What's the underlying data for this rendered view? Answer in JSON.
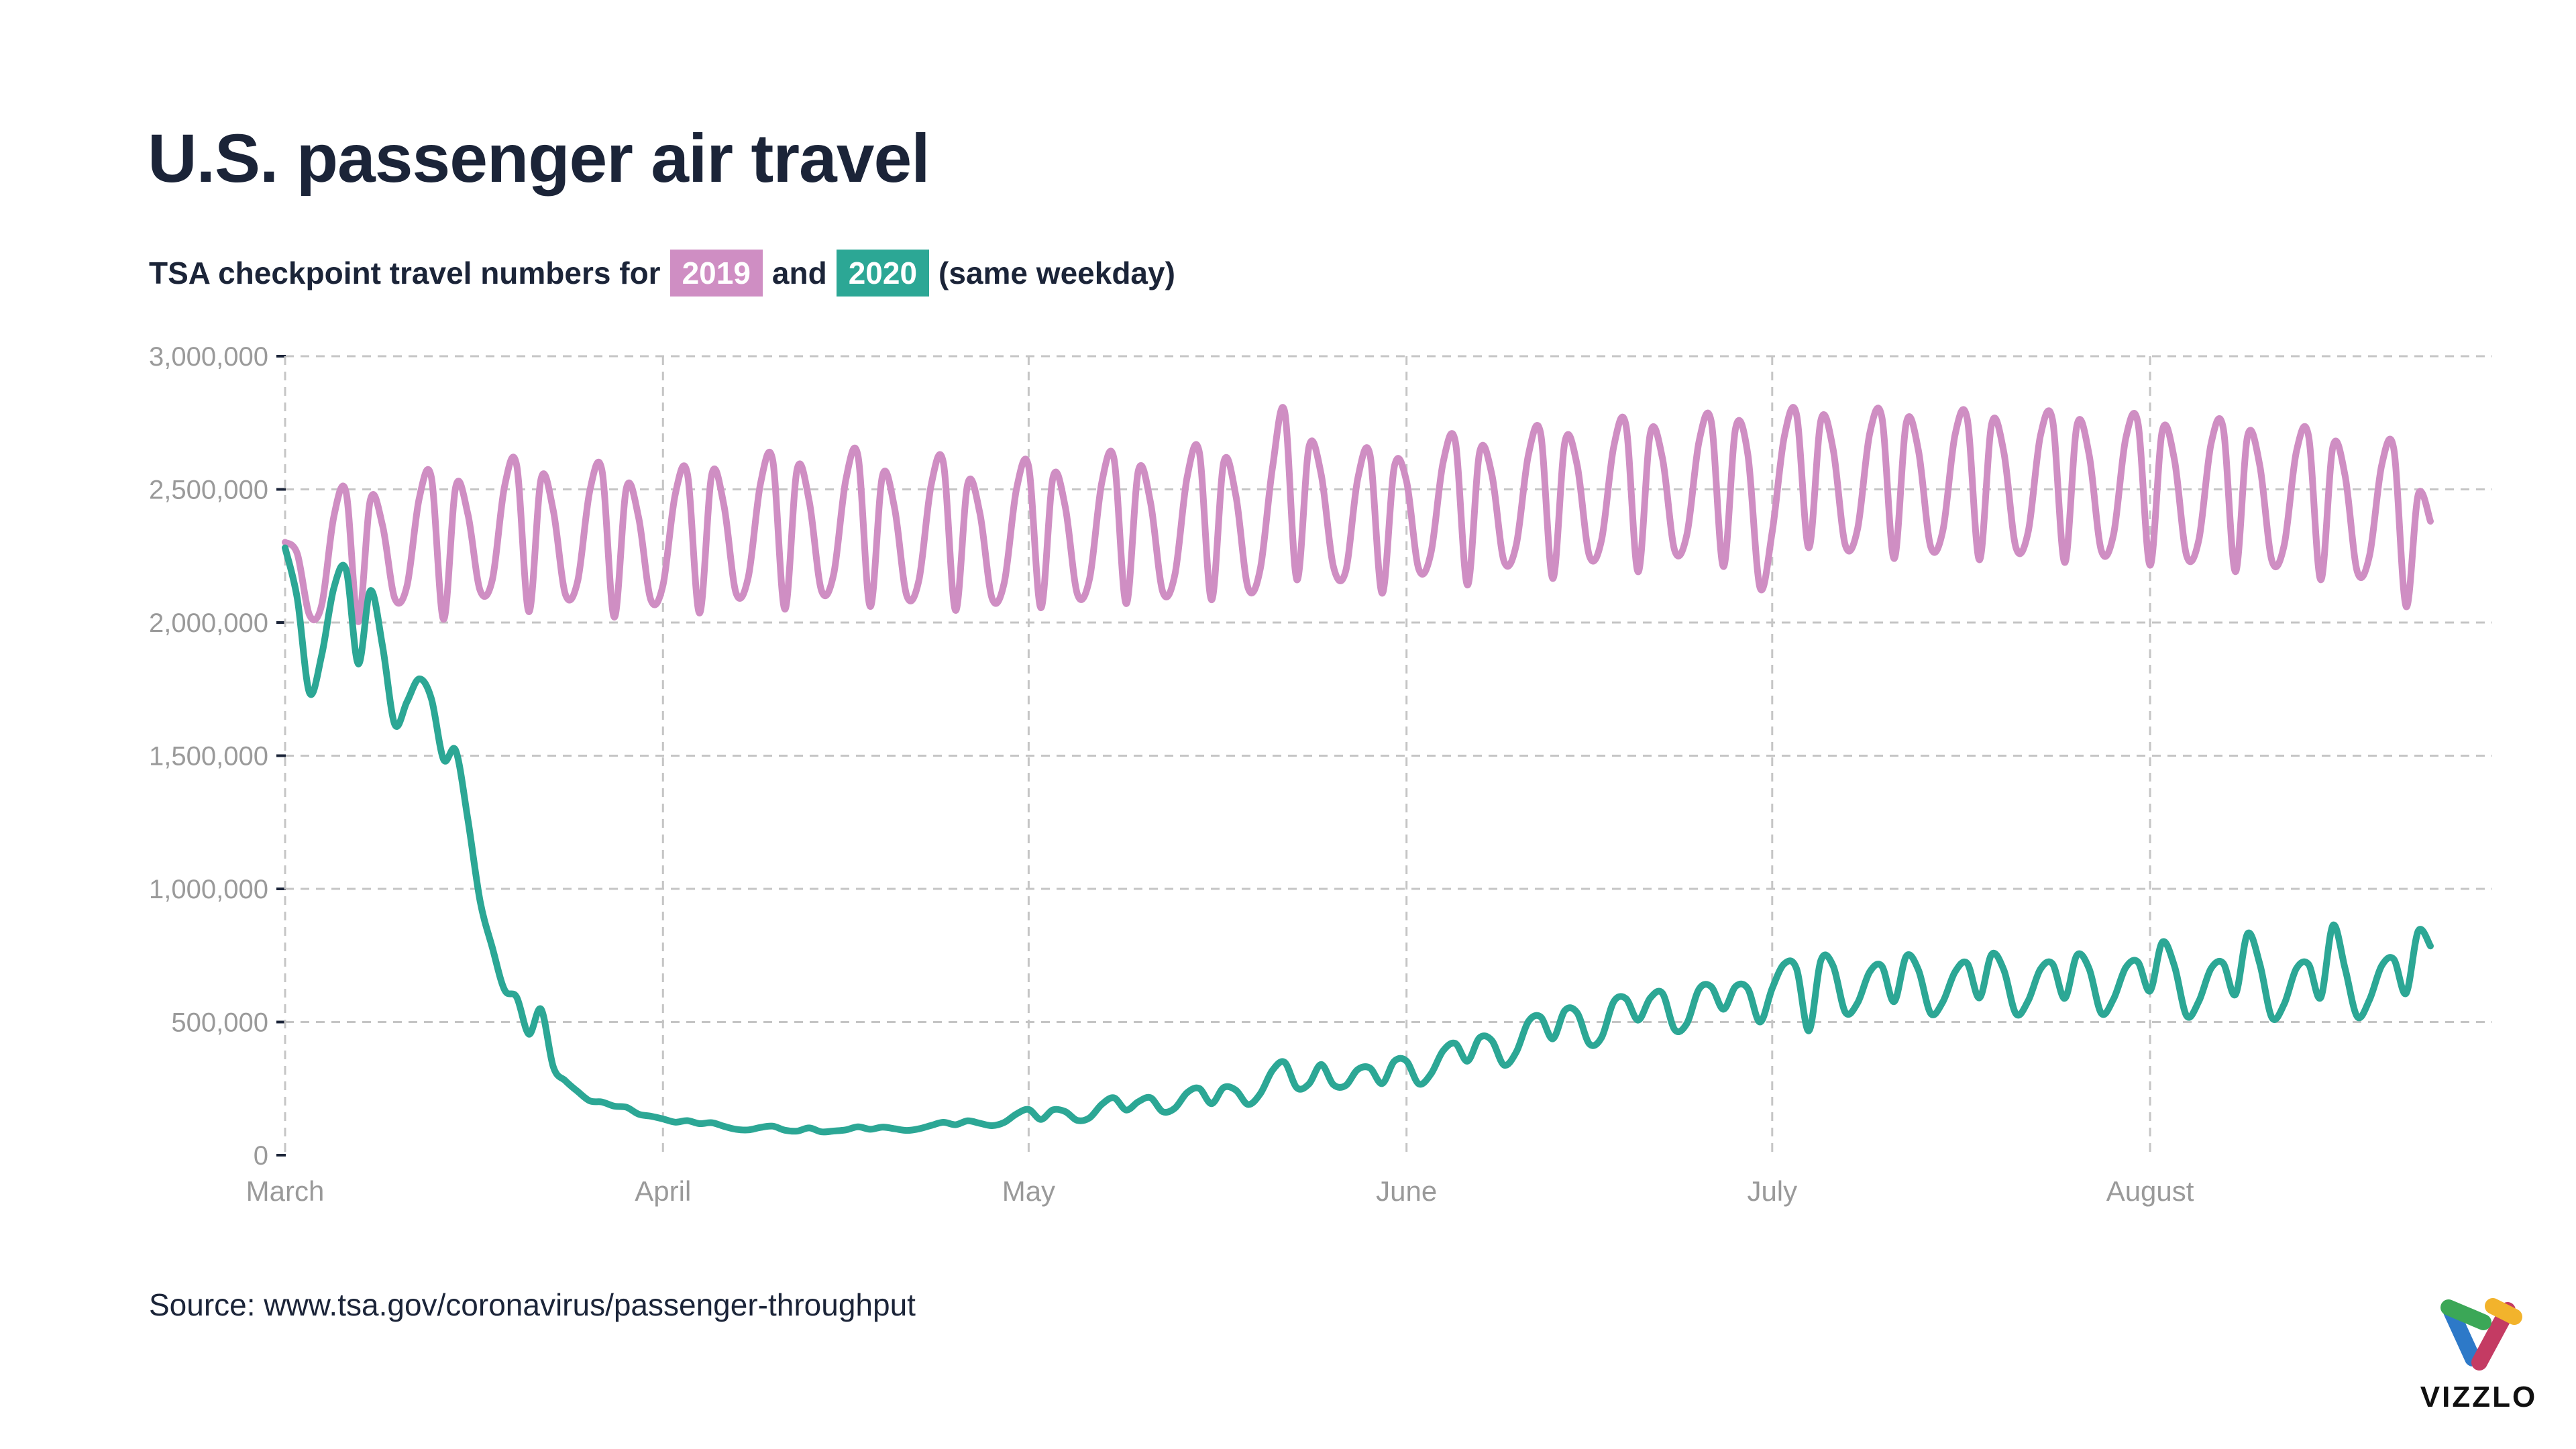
{
  "header": {
    "title": "U.S. passenger air travel",
    "subtitle_prefix": "TSA checkpoint travel numbers for",
    "badge_2019": "2019",
    "subtitle_middle": "and",
    "badge_2020": "2020",
    "subtitle_suffix": "(same weekday)"
  },
  "source": {
    "label": "Source: www.tsa.gov/coronavirus/passenger-throughput"
  },
  "branding": {
    "logo_text": "VIZZLO"
  },
  "colors": {
    "series_2019": "#cf8ec3",
    "series_2020": "#2ca795",
    "title_text": "#1b2438",
    "axis_label": "#9a9a9a",
    "gridline": "#c5c5c5",
    "tick": "#1b2438",
    "logo_blue": "#2d79c8",
    "logo_crimson": "#c43b63",
    "logo_green": "#3ba757",
    "logo_yellow": "#f2b32c"
  },
  "chart_data": {
    "type": "line",
    "title": "TSA checkpoint travel numbers for 2019 and 2020 (same weekday)",
    "xlabel": "",
    "ylabel": "",
    "ylim": [
      0,
      3000000
    ],
    "y_ticks": [
      0,
      500000,
      1000000,
      1500000,
      2000000,
      2500000,
      3000000
    ],
    "grid": "dashed",
    "legend_position": "inline-subtitle-badges",
    "x_unit": "day (March 1 - August 24, 2020, daily)",
    "days_total": 176,
    "x_month_ticks": [
      {
        "label": "March",
        "day": 0
      },
      {
        "label": "April",
        "day": 31
      },
      {
        "label": "May",
        "day": 61
      },
      {
        "label": "June",
        "day": 92
      },
      {
        "label": "July",
        "day": 122
      },
      {
        "label": "August",
        "day": 153
      }
    ],
    "series": [
      {
        "name": "2019",
        "color_key": "series_2019",
        "values": [
          2301439,
          2257920,
          2028513,
          2065631,
          2398477,
          2489065,
          2003240,
          2462124,
          2362904,
          2090372,
          2137731,
          2465709,
          2545742,
          2012005,
          2510294,
          2405168,
          2120421,
          2160446,
          2510758,
          2590499,
          2040611,
          2540014,
          2420173,
          2105315,
          2155227,
          2495822,
          2570613,
          2020308,
          2505230,
          2395109,
          2085761,
          2140553,
          2480109,
          2560062,
          2035454,
          2555832,
          2440441,
          2110106,
          2170928,
          2520920,
          2610465,
          2050217,
          2575099,
          2455683,
          2120670,
          2180741,
          2535312,
          2625705,
          2060334,
          2550459,
          2430317,
          2100729,
          2160220,
          2515599,
          2600701,
          2045708,
          2520663,
          2410295,
          2090521,
          2150929,
          2500197,
          2585586,
          2055418,
          2545350,
          2435207,
          2105945,
          2165673,
          2525460,
          2615247,
          2070912,
          2570613,
          2450282,
          2115379,
          2180154,
          2545612,
          2640209,
          2085371,
          2600840,
          2475795,
          2130086,
          2200623,
          2580437,
          2792670,
          2160668,
          2660149,
          2555578,
          2210086,
          2190947,
          2540527,
          2630456,
          2110105,
          2585317,
          2530219,
          2200721,
          2260446,
          2600931,
          2680099,
          2140770,
          2640209,
          2555566,
          2230229,
          2290862,
          2630047,
          2710541,
          2165215,
          2680338,
          2590116,
          2250979,
          2310014,
          2660730,
          2740893,
          2190362,
          2710426,
          2615730,
          2270596,
          2330406,
          2680601,
          2755171,
          2210087,
          2730512,
          2630798,
          2130904,
          2340226,
          2700419,
          2780306,
          2280735,
          2760941,
          2650336,
          2290301,
          2350966,
          2710297,
          2770488,
          2240260,
          2750109,
          2645619,
          2285155,
          2345617,
          2705380,
          2765101,
          2235523,
          2745065,
          2640531,
          2280802,
          2340744,
          2700201,
          2760159,
          2225427,
          2740701,
          2630251,
          2270309,
          2330313,
          2690204,
          2750851,
          2215212,
          2720332,
          2610752,
          2250692,
          2310715,
          2670513,
          2730308,
          2190918,
          2700089,
          2590245,
          2230987,
          2290846,
          2640722,
          2700959,
          2160359,
          2660157,
          2550790,
          2190407,
          2250118,
          2590195,
          2650170,
          2060555,
          2480721,
          2380413
        ]
      },
      {
        "name": "2020",
        "color_key": "series_2020",
        "values": [
          2280522,
          2089641,
          1736393,
          1877401,
          2130015,
          2198517,
          1844811,
          2119867,
          1909363,
          1617220,
          1702686,
          1788456,
          1714372,
          1485553,
          1519192,
          1257823,
          953699,
          779631,
          620883,
          593167,
          454516,
          548132,
          331431,
          279018,
          239234,
          203858,
          199644,
          184027,
          180002,
          154080,
          146348,
          136023,
          124021,
          129763,
          118302,
          122029,
          108310,
          97130,
          94931,
          104090,
          108977,
          93645,
          90510,
          102184,
          87534,
          90784,
          95085,
          106385,
          97236,
          105382,
          99344,
          92859,
          98968,
          111627,
          123464,
          114459,
          128875,
          119629,
          110913,
          123198,
          154695,
          171563,
          134261,
          170254,
          163692,
          130601,
          140409,
          190863,
          215444,
          169580,
          200815,
          215645,
          163205,
          176667,
          234928,
          250467,
          193340,
          253807,
          244176,
          190477,
          230367,
          318449,
          348673,
          253190,
          267451,
          340769,
          264843,
          261170,
          321776,
          327133,
          268867,
          352947,
          353261,
          267742,
          304436,
          391882,
          419675,
          353016,
          441255,
          430414,
          338382,
          386969,
          502209,
          519304,
          437119,
          544046,
          534528,
          417924,
          441829,
          576514,
          587908,
          507129,
          590456,
          607540,
          471421,
          494826,
          623624,
          632498,
          547889,
          633810,
          625235,
          500054,
          626516,
          718988,
          699633,
          466669,
          732123,
          710904,
          536577,
          571477,
          688519,
          709653,
          576504,
          747422,
          695330,
          532267,
          575891,
          688532,
          720378,
          590766,
          754046,
          695691,
          530421,
          579896,
          697880,
          718310,
          589028,
          751205,
          700314,
          532652,
          586310,
          704072,
          725513,
          616618,
          799861,
          710146,
          522874,
          577815,
          700665,
          720603,
          602929,
          831789,
          718310,
          516068,
          567604,
          700756,
          716805,
          591806,
          862949,
          700522,
          519836,
          583182,
          711178,
          735591,
          607540,
          841806,
          785322
        ]
      }
    ]
  }
}
